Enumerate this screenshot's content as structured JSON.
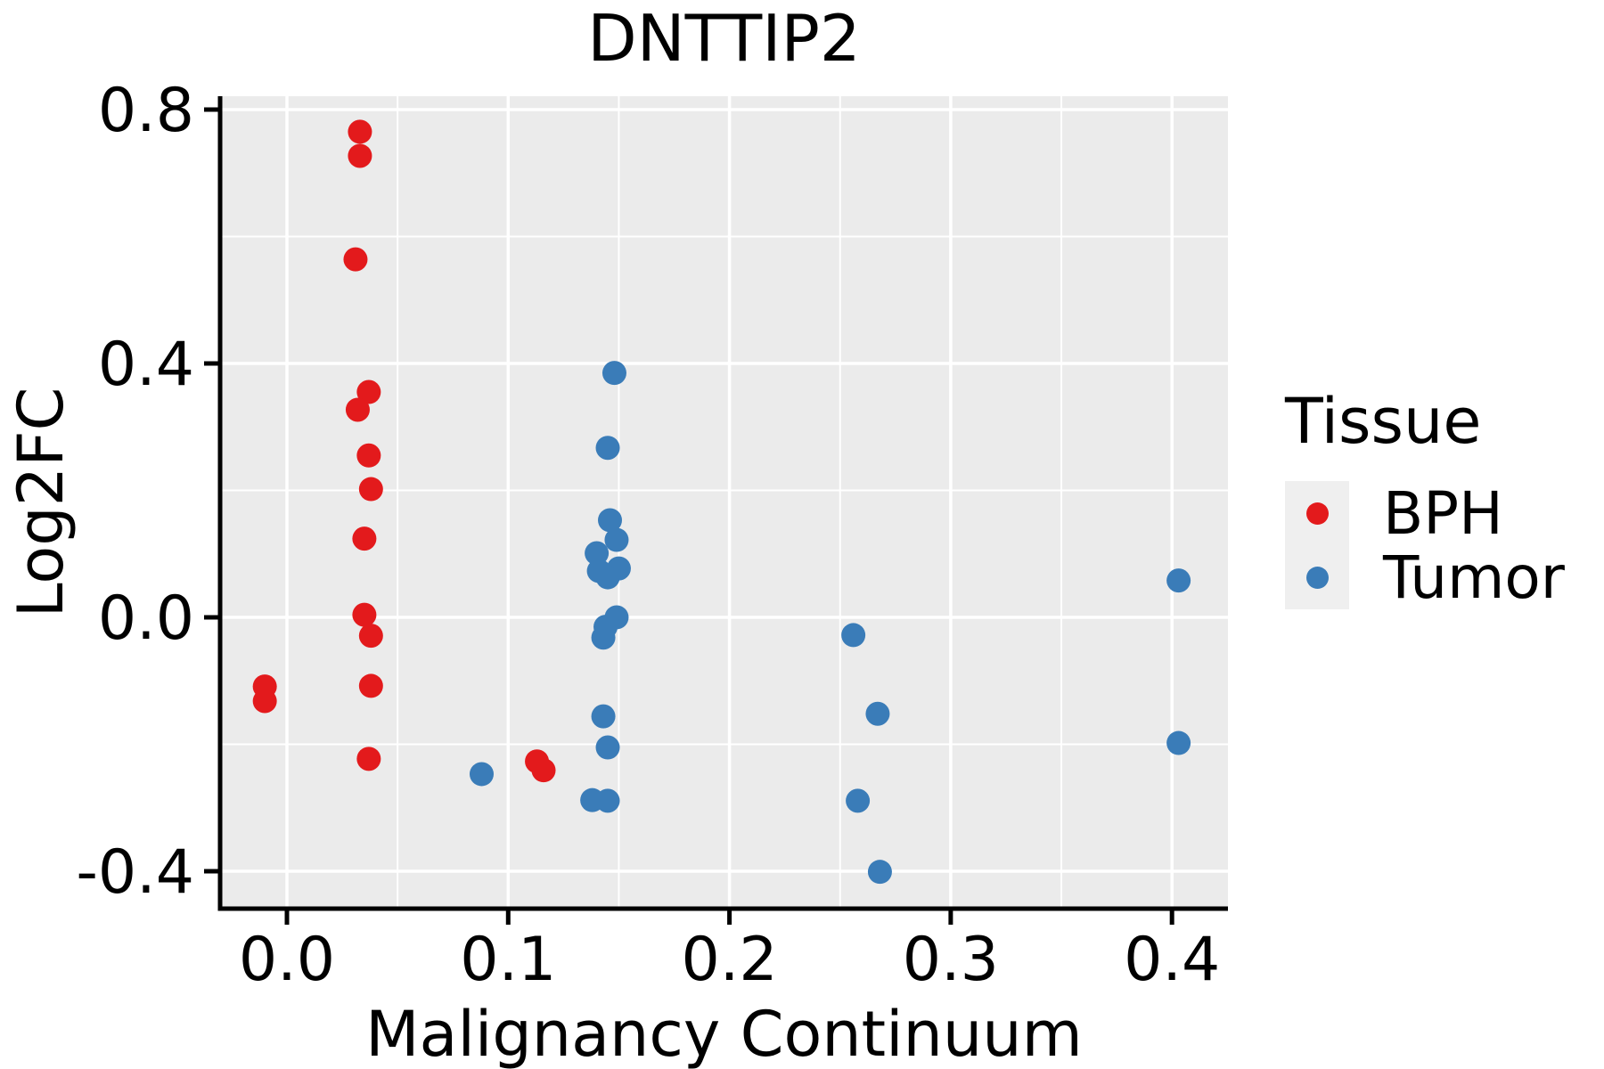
{
  "title": "DNTTIP2",
  "legend": {
    "title": "Tissue",
    "entries": [
      {
        "label": "BPH",
        "color": "#E31A1C"
      },
      {
        "label": "Tumor",
        "color": "#3A7CB8"
      }
    ]
  },
  "chart_data": {
    "type": "scatter",
    "title": "DNTTIP2",
    "xlabel": "Malignancy Continuum",
    "ylabel": "Log2FC",
    "xlim": [
      -0.0302,
      0.4253
    ],
    "ylim": [
      -0.459,
      0.821
    ],
    "x_ticks": [
      0.0,
      0.1,
      0.2,
      0.3,
      0.4
    ],
    "x_tick_labels": [
      "0.0",
      "0.1",
      "0.2",
      "0.3",
      "0.4"
    ],
    "y_ticks": [
      -0.4,
      0.0,
      0.4,
      0.8
    ],
    "y_tick_labels": [
      "-0.4",
      "0.0",
      "0.4",
      "0.8"
    ],
    "x_minor_ticks": [
      0.05,
      0.15,
      0.25,
      0.35
    ],
    "y_minor_ticks": [
      -0.2,
      0.2,
      0.6
    ],
    "grid": true,
    "legend_position": "right",
    "panel_background": "#EBEBEB",
    "grid_color": "#FFFFFF",
    "axis_color": "#000000",
    "point_radius": 13.5,
    "series": [
      {
        "name": "BPH",
        "color": "#E31A1C",
        "points": [
          [
            -0.01,
            -0.109
          ],
          [
            -0.01,
            -0.132
          ],
          [
            0.033,
            0.765
          ],
          [
            0.033,
            0.727
          ],
          [
            0.031,
            0.564
          ],
          [
            0.037,
            0.355
          ],
          [
            0.032,
            0.327
          ],
          [
            0.037,
            0.255
          ],
          [
            0.038,
            0.202
          ],
          [
            0.035,
            0.124
          ],
          [
            0.035,
            0.004
          ],
          [
            0.038,
            -0.029
          ],
          [
            0.038,
            -0.108
          ],
          [
            0.037,
            -0.223
          ],
          [
            0.113,
            -0.227
          ],
          [
            0.116,
            -0.241
          ]
        ]
      },
      {
        "name": "Tumor",
        "color": "#3A7CB8",
        "points": [
          [
            0.088,
            -0.247
          ],
          [
            0.148,
            0.385
          ],
          [
            0.145,
            0.267
          ],
          [
            0.146,
            0.153
          ],
          [
            0.149,
            0.122
          ],
          [
            0.14,
            0.101
          ],
          [
            0.141,
            0.073
          ],
          [
            0.15,
            0.077
          ],
          [
            0.145,
            0.063
          ],
          [
            0.149,
            0.0
          ],
          [
            0.144,
            -0.015
          ],
          [
            0.143,
            -0.032
          ],
          [
            0.143,
            -0.156
          ],
          [
            0.145,
            -0.205
          ],
          [
            0.138,
            -0.288
          ],
          [
            0.145,
            -0.289
          ],
          [
            0.256,
            -0.028
          ],
          [
            0.267,
            -0.152
          ],
          [
            0.258,
            -0.289
          ],
          [
            0.268,
            -0.401
          ],
          [
            0.403,
            0.058
          ],
          [
            0.403,
            -0.198
          ]
        ]
      }
    ]
  }
}
